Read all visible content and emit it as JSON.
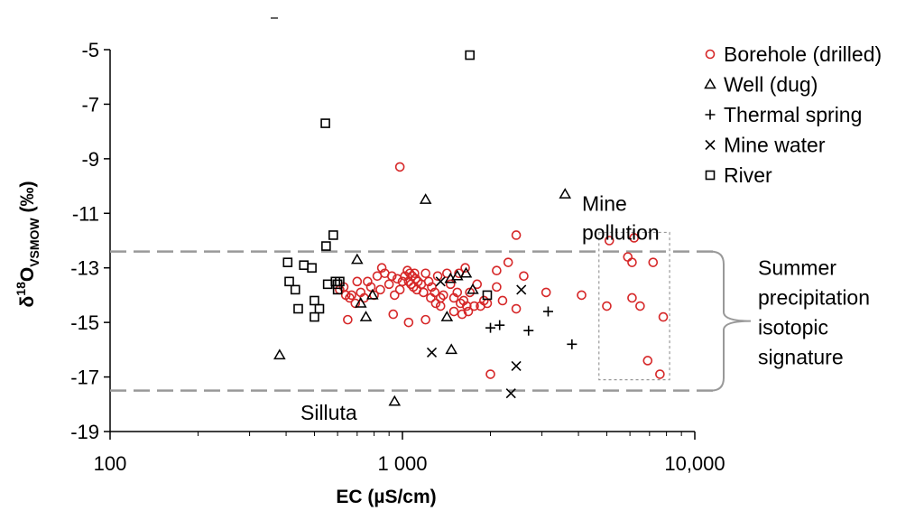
{
  "chart_data": {
    "type": "scatter",
    "xscale": "log",
    "xlim": [
      100,
      10000
    ],
    "ylim": [
      -19,
      -5
    ],
    "x_ticks": [
      {
        "value": 100,
        "label": "100"
      },
      {
        "value": 1000,
        "label": "1 000"
      },
      {
        "value": 10000,
        "label": "10,000"
      }
    ],
    "y_ticks": [
      {
        "value": -5,
        "label": "-5"
      },
      {
        "value": -7,
        "label": "-7"
      },
      {
        "value": -9,
        "label": "-9"
      },
      {
        "value": -11,
        "label": "-11"
      },
      {
        "value": -13,
        "label": "-13"
      },
      {
        "value": -15,
        "label": "-15"
      },
      {
        "value": -17,
        "label": "-17"
      },
      {
        "value": -19,
        "label": "-19"
      }
    ],
    "xlabel": "EC (µS/cm)",
    "ylabel": {
      "base": "δ",
      "sup": "18",
      "main": "O",
      "sub": "VSMOW",
      "suffix": " (‰)"
    },
    "legend": {
      "placement": "top-right"
    },
    "colors": {
      "borehole": "#d62728",
      "other": "#000000",
      "dashed": "#999999",
      "box": "#999999",
      "bracket": "#999999"
    },
    "series": [
      {
        "name": "Borehole (drilled)",
        "marker": "circle",
        "color": "#d62728",
        "points": [
          [
            980,
            -9.3
          ],
          [
            2450,
            -11.8
          ],
          [
            5100,
            -12.0
          ],
          [
            6200,
            -11.9
          ],
          [
            5900,
            -12.6
          ],
          [
            6100,
            -12.8
          ],
          [
            7200,
            -12.8
          ],
          [
            2100,
            -13.1
          ],
          [
            2300,
            -12.8
          ],
          [
            2600,
            -13.3
          ],
          [
            1560,
            -13.2
          ],
          [
            1640,
            -13.0
          ],
          [
            1040,
            -13.1
          ],
          [
            1060,
            -13.2
          ],
          [
            1080,
            -13.3
          ],
          [
            1100,
            -13.2
          ],
          [
            1110,
            -13.4
          ],
          [
            1050,
            -13.5
          ],
          [
            1070,
            -13.6
          ],
          [
            1090,
            -13.7
          ],
          [
            1120,
            -13.8
          ],
          [
            1130,
            -13.5
          ],
          [
            1160,
            -13.6
          ],
          [
            1180,
            -13.9
          ],
          [
            1200,
            -13.2
          ],
          [
            1230,
            -13.5
          ],
          [
            1260,
            -13.7
          ],
          [
            1290,
            -13.9
          ],
          [
            1320,
            -13.3
          ],
          [
            1350,
            -14.1
          ],
          [
            1380,
            -14.0
          ],
          [
            1420,
            -13.2
          ],
          [
            1460,
            -13.6
          ],
          [
            1500,
            -14.1
          ],
          [
            1540,
            -13.9
          ],
          [
            1580,
            -14.3
          ],
          [
            1620,
            -14.2
          ],
          [
            1660,
            -14.4
          ],
          [
            1700,
            -13.9
          ],
          [
            1760,
            -14.4
          ],
          [
            1800,
            -13.6
          ],
          [
            1850,
            -14.4
          ],
          [
            1900,
            -14.2
          ],
          [
            1950,
            -14.3
          ],
          [
            2100,
            -13.7
          ],
          [
            2200,
            -14.2
          ],
          [
            2450,
            -14.5
          ],
          [
            980,
            -13.8
          ],
          [
            1000,
            -13.5
          ],
          [
            1020,
            -13.3
          ],
          [
            960,
            -13.4
          ],
          [
            940,
            -14.0
          ],
          [
            920,
            -13.3
          ],
          [
            900,
            -13.6
          ],
          [
            870,
            -13.2
          ],
          [
            850,
            -13.0
          ],
          [
            840,
            -13.8
          ],
          [
            820,
            -13.3
          ],
          [
            800,
            -14.0
          ],
          [
            780,
            -13.7
          ],
          [
            760,
            -13.5
          ],
          [
            740,
            -14.1
          ],
          [
            720,
            -13.9
          ],
          [
            700,
            -13.5
          ],
          [
            690,
            -14.3
          ],
          [
            670,
            -14.0
          ],
          [
            660,
            -14.1
          ],
          [
            640,
            -14.0
          ],
          [
            610,
            -13.8
          ],
          [
            630,
            -13.7
          ],
          [
            650,
            -14.9
          ],
          [
            930,
            -14.7
          ],
          [
            1050,
            -15.0
          ],
          [
            1200,
            -14.9
          ],
          [
            1350,
            -14.4
          ],
          [
            1500,
            -14.6
          ],
          [
            1600,
            -14.7
          ],
          [
            1680,
            -14.6
          ],
          [
            1250,
            -14.1
          ],
          [
            1300,
            -14.3
          ],
          [
            3100,
            -13.9
          ],
          [
            4100,
            -14.0
          ],
          [
            5000,
            -14.4
          ],
          [
            6100,
            -14.1
          ],
          [
            6500,
            -14.4
          ],
          [
            7800,
            -14.8
          ],
          [
            2000,
            -16.9
          ],
          [
            6900,
            -16.4
          ],
          [
            7600,
            -16.9
          ]
        ]
      },
      {
        "name": "Well (dug)",
        "marker": "triangle",
        "color": "#000000",
        "points": [
          [
            1200,
            -10.5
          ],
          [
            3600,
            -10.3
          ],
          [
            700,
            -12.7
          ],
          [
            1460,
            -13.4
          ],
          [
            1540,
            -13.3
          ],
          [
            1650,
            -13.2
          ],
          [
            1740,
            -13.8
          ],
          [
            790,
            -14.0
          ],
          [
            720,
            -14.3
          ],
          [
            750,
            -14.8
          ],
          [
            1420,
            -14.8
          ],
          [
            1470,
            -16.0
          ],
          [
            380,
            -16.2
          ],
          [
            940,
            -17.9
          ]
        ]
      },
      {
        "name": "Thermal spring",
        "marker": "plus",
        "color": "#000000",
        "points": [
          [
            2000,
            -15.2
          ],
          [
            2150,
            -15.1
          ],
          [
            2700,
            -15.3
          ],
          [
            3150,
            -14.6
          ],
          [
            3800,
            -15.8
          ]
        ]
      },
      {
        "name": "Mine water",
        "marker": "cross",
        "color": "#000000",
        "points": [
          [
            1350,
            -13.5
          ],
          [
            2550,
            -13.8
          ],
          [
            1260,
            -16.1
          ],
          [
            2450,
            -16.6
          ],
          [
            2350,
            -17.6
          ]
        ]
      },
      {
        "name": "River",
        "marker": "square",
        "color": "#000000",
        "points": [
          [
            1700,
            -5.2
          ],
          [
            545,
            -7.7
          ],
          [
            580,
            -11.8
          ],
          [
            548,
            -12.2
          ],
          [
            405,
            -12.8
          ],
          [
            460,
            -12.9
          ],
          [
            490,
            -13.0
          ],
          [
            555,
            -13.6
          ],
          [
            590,
            -13.5
          ],
          [
            600,
            -13.6
          ],
          [
            610,
            -13.5
          ],
          [
            600,
            -13.8
          ],
          [
            410,
            -13.5
          ],
          [
            430,
            -13.8
          ],
          [
            500,
            -14.2
          ],
          [
            520,
            -14.5
          ],
          [
            440,
            -14.5
          ],
          [
            500,
            -14.8
          ],
          [
            1950,
            -14.0
          ]
        ]
      }
    ],
    "reference_lines": [
      {
        "y": -12.4,
        "style": "dashed",
        "x_range": [
          100,
          10000
        ]
      },
      {
        "y": -17.5,
        "style": "dashed",
        "x_range": [
          100,
          10000
        ]
      }
    ],
    "highlight_box": {
      "x_range": [
        4700,
        8200
      ],
      "y_range": [
        -17.1,
        -11.7
      ],
      "style": "dotted"
    },
    "bracket": {
      "y_range": [
        -12.4,
        -17.5
      ]
    },
    "annotations": [
      {
        "id": "mine-pollution",
        "lines": [
          "Mine",
          "pollution"
        ],
        "x": 5500,
        "y": -10.9
      },
      {
        "id": "silluta",
        "lines": [
          "Silluta"
        ],
        "x": 710,
        "y": -18.3
      },
      {
        "id": "summer-precip",
        "lines": [
          "Summer",
          "precipitation",
          "isotopic",
          "signature"
        ],
        "x": 16500,
        "y": -14.9
      }
    ]
  }
}
